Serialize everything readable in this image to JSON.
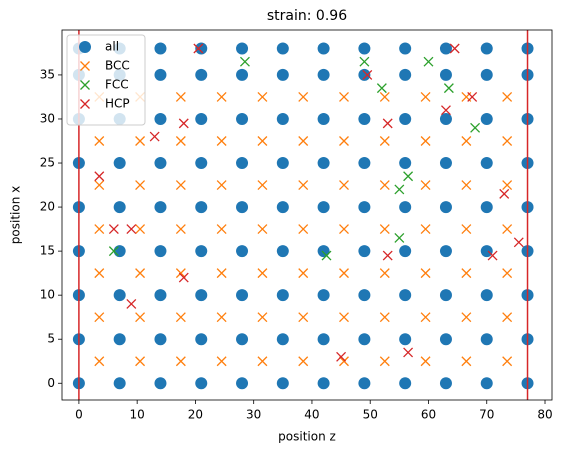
{
  "chart_data": {
    "type": "scatter",
    "title": "strain: 0.96",
    "x_label": "position z",
    "y_label": "position x",
    "xlim": [
      -2.9,
      81.2
    ],
    "ylim": [
      -1.9,
      40.1
    ],
    "xticks": [
      0,
      10,
      20,
      30,
      40,
      50,
      60,
      70,
      80
    ],
    "yticks": [
      0,
      5,
      10,
      15,
      20,
      25,
      30,
      35
    ],
    "grid": false,
    "legend": "upper left",
    "vlines": {
      "color": "#d62728",
      "x": [
        0,
        77
      ]
    },
    "series": [
      {
        "name": "all",
        "color": "#1f77b4",
        "marker": "o",
        "x": [
          0,
          7,
          14,
          21,
          28,
          35,
          42,
          49,
          56,
          63,
          70,
          77,
          0,
          7,
          14,
          21,
          28,
          35,
          42,
          49,
          56,
          63,
          70,
          77,
          0,
          7,
          14,
          21,
          28,
          35,
          42,
          49,
          56,
          63,
          70,
          77,
          0,
          7,
          14,
          21,
          28,
          35,
          42,
          49,
          56,
          63,
          70,
          77,
          0,
          7,
          14,
          21,
          28,
          35,
          42,
          49,
          56,
          63,
          70,
          77,
          0,
          7,
          14,
          21,
          28,
          35,
          42,
          49,
          56,
          63,
          70,
          77,
          0,
          7,
          14,
          21,
          28,
          35,
          42,
          49,
          56,
          63,
          70,
          77,
          0,
          7,
          14,
          21,
          28,
          35,
          42,
          49,
          56,
          63,
          70,
          77,
          0,
          7,
          14,
          21,
          28,
          35,
          42,
          49,
          56,
          63,
          70,
          77
        ],
        "y": [
          0,
          0,
          0,
          0,
          0,
          0,
          0,
          0,
          0,
          0,
          0,
          0,
          5,
          5,
          5,
          5,
          5,
          5,
          5,
          5,
          5,
          5,
          5,
          5,
          10,
          10,
          10,
          10,
          10,
          10,
          10,
          10,
          10,
          10,
          10,
          10,
          15,
          15,
          15,
          15,
          15,
          15,
          15,
          15,
          15,
          15,
          15,
          15,
          20,
          20,
          20,
          20,
          20,
          20,
          20,
          20,
          20,
          20,
          20,
          20,
          25,
          25,
          25,
          25,
          25,
          25,
          25,
          25,
          25,
          25,
          25,
          25,
          30,
          30,
          30,
          30,
          30,
          30,
          30,
          30,
          30,
          30,
          30,
          30,
          35,
          35,
          35,
          35,
          35,
          35,
          35,
          35,
          35,
          35,
          35,
          35,
          38,
          38,
          38,
          38,
          38,
          38,
          38,
          38,
          38,
          38,
          38,
          38
        ]
      },
      {
        "name": "BCC",
        "color": "#ff7f0e",
        "marker": "x",
        "x": [
          3.5,
          10.5,
          17.5,
          24.5,
          31.5,
          38.5,
          45.5,
          52.5,
          59.5,
          66.5,
          73.5,
          3.5,
          10.5,
          17.5,
          24.5,
          31.5,
          38.5,
          45.5,
          52.5,
          59.5,
          66.5,
          73.5,
          3.5,
          10.5,
          17.5,
          24.5,
          31.5,
          38.5,
          45.5,
          52.5,
          59.5,
          66.5,
          73.5,
          3.5,
          10.5,
          17.5,
          24.5,
          31.5,
          38.5,
          45.5,
          52.5,
          59.5,
          66.5,
          73.5,
          3.5,
          10.5,
          17.5,
          24.5,
          31.5,
          38.5,
          45.5,
          52.5,
          59.5,
          66.5,
          73.5,
          3.5,
          10.5,
          17.5,
          24.5,
          31.5,
          38.5,
          45.5,
          52.5,
          59.5,
          66.5,
          73.5,
          3.5,
          10.5,
          17.5,
          24.5,
          31.5,
          38.5,
          45.5,
          52.5,
          59.5,
          66.5,
          73.5
        ],
        "y": [
          2.5,
          2.5,
          2.5,
          2.5,
          2.5,
          2.5,
          2.5,
          2.5,
          2.5,
          2.5,
          2.5,
          7.5,
          7.5,
          7.5,
          7.5,
          7.5,
          7.5,
          7.5,
          7.5,
          7.5,
          7.5,
          7.5,
          12.5,
          12.5,
          12.5,
          12.5,
          12.5,
          12.5,
          12.5,
          12.5,
          12.5,
          12.5,
          12.5,
          17.5,
          17.5,
          17.5,
          17.5,
          17.5,
          17.5,
          17.5,
          17.5,
          17.5,
          17.5,
          17.5,
          22.5,
          22.5,
          22.5,
          22.5,
          22.5,
          22.5,
          22.5,
          22.5,
          22.5,
          22.5,
          22.5,
          27.5,
          27.5,
          27.5,
          27.5,
          27.5,
          27.5,
          27.5,
          27.5,
          27.5,
          27.5,
          27.5,
          32.5,
          32.5,
          32.5,
          32.5,
          32.5,
          32.5,
          32.5,
          32.5,
          32.5,
          32.5,
          32.5
        ]
      },
      {
        "name": "FCC",
        "color": "#2ca02c",
        "marker": "x",
        "x": [
          28.5,
          49,
          60,
          52,
          63.5,
          68,
          56.5,
          55,
          55,
          6,
          42.5
        ],
        "y": [
          36.5,
          36.5,
          36.5,
          33.5,
          33.5,
          29,
          23.5,
          22,
          16.5,
          15,
          14.5
        ]
      },
      {
        "name": "HCP",
        "color": "#d62728",
        "marker": "x",
        "x": [
          20.5,
          64.5,
          49.5,
          63,
          67.5,
          13,
          18,
          53,
          3.5,
          6,
          9,
          73,
          71,
          75.5,
          18,
          9,
          45,
          56.5,
          53
        ],
        "y": [
          38,
          38,
          35,
          31,
          32.5,
          28,
          29.5,
          29.5,
          23.5,
          17.5,
          17.5,
          21.5,
          14.5,
          16,
          12,
          9,
          3,
          3.5,
          14.5
        ]
      }
    ]
  }
}
